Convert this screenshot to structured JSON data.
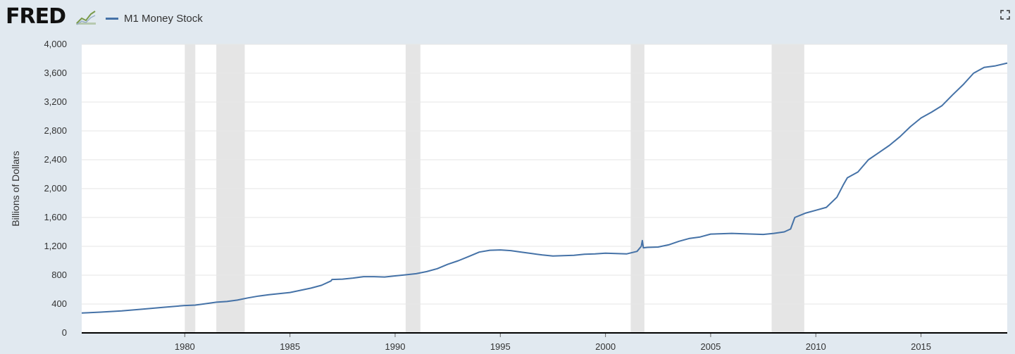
{
  "header": {
    "logo_text": "FRED",
    "logo_icon": "trend-graph-icon",
    "expand_icon": "fullscreen-icon"
  },
  "colors": {
    "series": "#4572a7",
    "recession": "#e5e5e5",
    "plot_background": "#ffffff",
    "page_background": "#e1e9f0"
  },
  "chart_data": {
    "type": "line",
    "title": "",
    "xlabel": "",
    "ylabel": "Billions of Dollars",
    "xlim": [
      1975.1,
      2019.1
    ],
    "ylim": [
      0,
      4000
    ],
    "grid": true,
    "legend_placement": "top-left",
    "y_ticks": [
      {
        "value": 0,
        "label": "0"
      },
      {
        "value": 400,
        "label": "400"
      },
      {
        "value": 800,
        "label": "800"
      },
      {
        "value": 1200,
        "label": "1,200"
      },
      {
        "value": 1600,
        "label": "1,600"
      },
      {
        "value": 2000,
        "label": "2,000"
      },
      {
        "value": 2400,
        "label": "2,400"
      },
      {
        "value": 2800,
        "label": "2,800"
      },
      {
        "value": 3200,
        "label": "3,200"
      },
      {
        "value": 3600,
        "label": "3,600"
      },
      {
        "value": 4000,
        "label": "4,000"
      }
    ],
    "x_ticks": [
      {
        "value": 1980,
        "label": "1980"
      },
      {
        "value": 1985,
        "label": "1985"
      },
      {
        "value": 1990,
        "label": "1990"
      },
      {
        "value": 1995,
        "label": "1995"
      },
      {
        "value": 2000,
        "label": "2000"
      },
      {
        "value": 2005,
        "label": "2005"
      },
      {
        "value": 2010,
        "label": "2010"
      },
      {
        "value": 2015,
        "label": "2015"
      }
    ],
    "recessions": [
      {
        "start": 1980.0,
        "end": 1980.5
      },
      {
        "start": 1981.5,
        "end": 1982.85
      },
      {
        "start": 1990.5,
        "end": 1991.2
      },
      {
        "start": 2001.2,
        "end": 2001.85
      },
      {
        "start": 2007.9,
        "end": 2009.45
      }
    ],
    "series": [
      {
        "name": "M1 Money Stock",
        "x": [
          1975.1,
          1976,
          1977,
          1978,
          1979,
          1980,
          1980.5,
          1981,
          1981.5,
          1982,
          1982.5,
          1983,
          1983.5,
          1984,
          1985,
          1985.5,
          1986,
          1986.5,
          1986.95,
          1987,
          1987.5,
          1988,
          1988.5,
          1989,
          1989.5,
          1990,
          1990.5,
          1991,
          1991.5,
          1992,
          1992.5,
          1993,
          1993.5,
          1994,
          1994.5,
          1995,
          1995.5,
          1996,
          1996.5,
          1997,
          1997.5,
          1998,
          1998.5,
          1999,
          1999.5,
          2000,
          2000.5,
          2001,
          2001.5,
          2001.7,
          2001.75,
          2001.8,
          2002,
          2002.5,
          2003,
          2003.5,
          2004,
          2004.5,
          2005,
          2005.5,
          2006,
          2006.5,
          2007,
          2007.5,
          2008,
          2008.5,
          2008.8,
          2009,
          2009.5,
          2010,
          2010.5,
          2011,
          2011.3,
          2011.5,
          2012,
          2012.5,
          2013,
          2013.5,
          2014,
          2014.5,
          2015,
          2015.5,
          2016,
          2016.5,
          2017,
          2017.5,
          2018,
          2018.5,
          2019.1
        ],
        "values": [
          275,
          288,
          305,
          330,
          355,
          380,
          385,
          405,
          425,
          435,
          455,
          485,
          510,
          530,
          560,
          590,
          620,
          660,
          720,
          740,
          745,
          760,
          780,
          780,
          775,
          790,
          805,
          820,
          850,
          890,
          950,
          1000,
          1060,
          1120,
          1145,
          1150,
          1140,
          1120,
          1100,
          1080,
          1065,
          1070,
          1075,
          1090,
          1095,
          1105,
          1100,
          1095,
          1130,
          1200,
          1280,
          1180,
          1185,
          1190,
          1220,
          1270,
          1310,
          1330,
          1370,
          1375,
          1380,
          1375,
          1370,
          1365,
          1380,
          1400,
          1440,
          1600,
          1660,
          1700,
          1740,
          1880,
          2050,
          2150,
          2230,
          2400,
          2500,
          2600,
          2720,
          2860,
          2980,
          3060,
          3150,
          3300,
          3440,
          3600,
          3680,
          3700,
          3740
        ]
      }
    ]
  }
}
